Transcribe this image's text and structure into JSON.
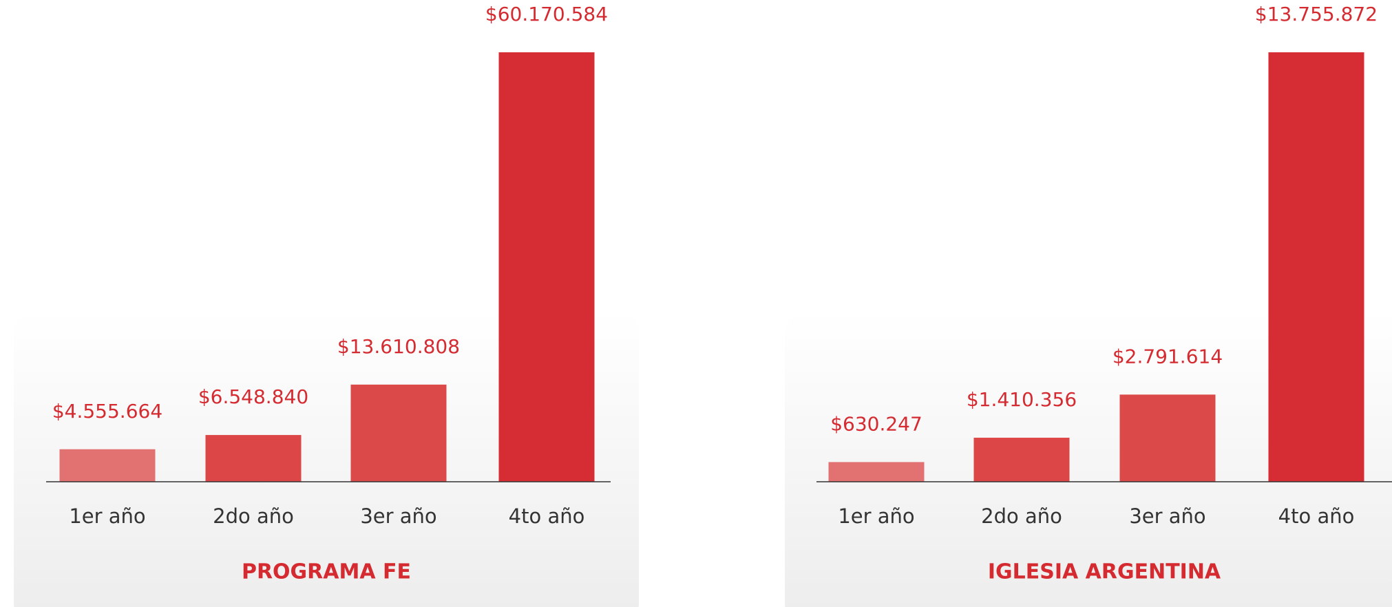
{
  "chart_data": [
    {
      "type": "bar",
      "title": "PROGRAMA FE",
      "categories": [
        "1er año",
        "2do año",
        "3er año",
        "4to año"
      ],
      "values": [
        4555664,
        6548840,
        13610808,
        60170584
      ],
      "value_labels": [
        "$4.555.664",
        "$6.548.840",
        "$13.610.808",
        "$60.170.584"
      ],
      "colors": [
        "#e27272",
        "#dc4646",
        "#dc4949",
        "#d62c33"
      ]
    },
    {
      "type": "bar",
      "title": "IGLESIA ARGENTINA",
      "categories": [
        "1er año",
        "2do año",
        "3er año",
        "4to año"
      ],
      "values": [
        630247,
        1410356,
        2791614,
        13755872
      ],
      "value_labels": [
        "$630.247",
        "$1.410.356",
        "$2.791.614",
        "$13.755.872"
      ],
      "colors": [
        "#e27272",
        "#dc4646",
        "#dc4949",
        "#d62c33"
      ]
    }
  ]
}
